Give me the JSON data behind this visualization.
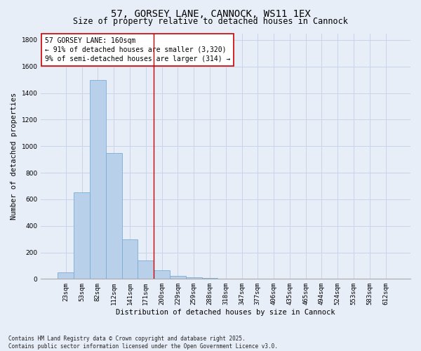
{
  "title_line1": "57, GORSEY LANE, CANNOCK, WS11 1EX",
  "title_line2": "Size of property relative to detached houses in Cannock",
  "xlabel": "Distribution of detached houses by size in Cannock",
  "ylabel": "Number of detached properties",
  "categories": [
    "23sqm",
    "53sqm",
    "82sqm",
    "112sqm",
    "141sqm",
    "171sqm",
    "200sqm",
    "229sqm",
    "259sqm",
    "288sqm",
    "318sqm",
    "347sqm",
    "377sqm",
    "406sqm",
    "435sqm",
    "465sqm",
    "494sqm",
    "524sqm",
    "553sqm",
    "583sqm",
    "612sqm"
  ],
  "values": [
    50,
    650,
    1500,
    950,
    300,
    140,
    65,
    25,
    10,
    5,
    2,
    1,
    1,
    0,
    0,
    0,
    0,
    0,
    0,
    0,
    0
  ],
  "bar_color": "#b8d0ea",
  "bar_edge_color": "#7aacd4",
  "vline_x": 5.5,
  "vline_color": "#cc0000",
  "annotation_text": "57 GORSEY LANE: 160sqm\n← 91% of detached houses are smaller (3,320)\n9% of semi-detached houses are larger (314) →",
  "annotation_box_color": "#ffffff",
  "annotation_box_edge": "#cc0000",
  "ylim": [
    0,
    1850
  ],
  "yticks": [
    0,
    200,
    400,
    600,
    800,
    1000,
    1200,
    1400,
    1600,
    1800
  ],
  "grid_color": "#c8d4e8",
  "bg_color": "#e8eef8",
  "footer_text": "Contains HM Land Registry data © Crown copyright and database right 2025.\nContains public sector information licensed under the Open Government Licence v3.0.",
  "title_fontsize": 10,
  "subtitle_fontsize": 8.5,
  "axis_label_fontsize": 7.5,
  "tick_fontsize": 6.5,
  "annotation_fontsize": 7,
  "ylabel_fontsize": 7.5,
  "footer_fontsize": 5.5
}
